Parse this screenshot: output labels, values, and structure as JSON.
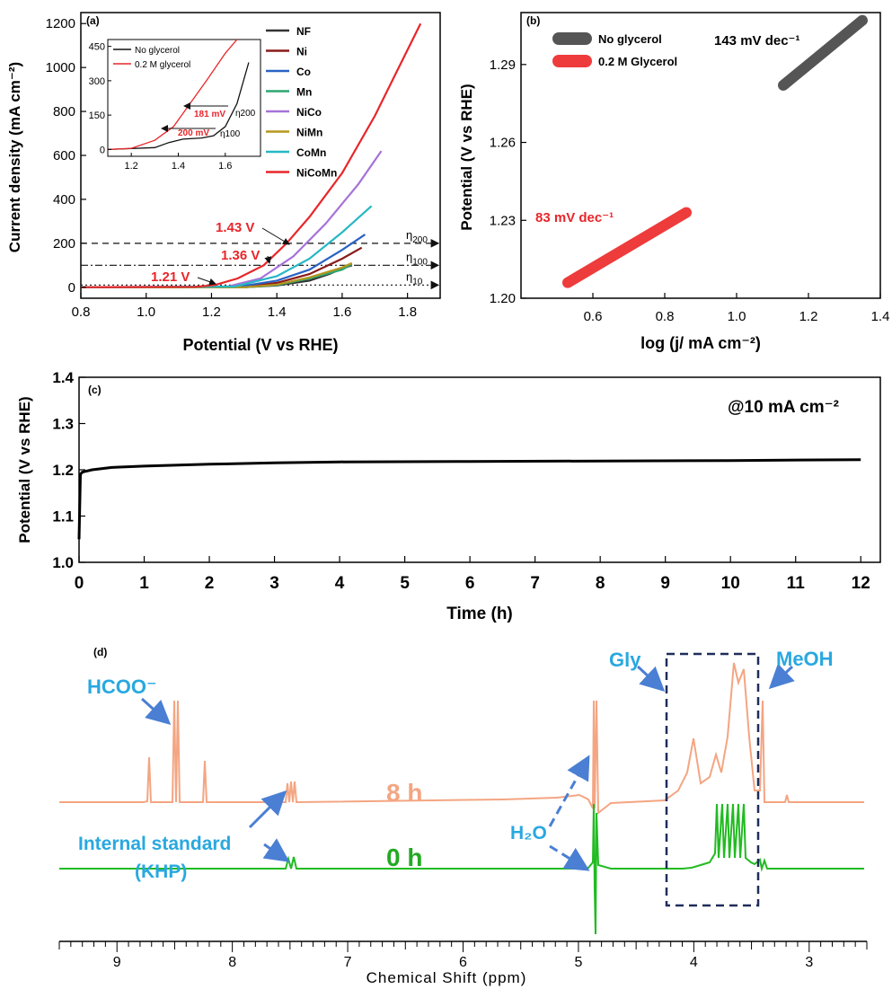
{
  "chart_data": [
    {
      "panel": "(a)",
      "type": "line",
      "xlabel": "Potential (V vs RHE)",
      "ylabel": "Current density (mA cm⁻²)",
      "xlim": [
        0.8,
        1.9
      ],
      "ylim": [
        -50,
        1250
      ],
      "xticks": [
        0.8,
        1.0,
        1.2,
        1.4,
        1.6,
        1.8
      ],
      "yticks": [
        0,
        200,
        400,
        600,
        800,
        1000,
        1200
      ],
      "grid": false,
      "legend_position": "top-right",
      "series": [
        {
          "name": "NF",
          "color": "#333333",
          "x": [
            0.8,
            1.3,
            1.4,
            1.5,
            1.56,
            1.6,
            1.63
          ],
          "y": [
            0,
            0,
            8,
            30,
            60,
            85,
            100
          ]
        },
        {
          "name": "Ni",
          "color": "#8b1a1a",
          "x": [
            0.8,
            1.3,
            1.4,
            1.5,
            1.6,
            1.66
          ],
          "y": [
            0,
            2,
            20,
            60,
            130,
            180
          ]
        },
        {
          "name": "Co",
          "color": "#2a62c4",
          "x": [
            0.8,
            1.28,
            1.4,
            1.5,
            1.6,
            1.67
          ],
          "y": [
            0,
            2,
            30,
            80,
            170,
            240
          ]
        },
        {
          "name": "Mn",
          "color": "#2ea672",
          "x": [
            0.8,
            1.3,
            1.4,
            1.5,
            1.6,
            1.63
          ],
          "y": [
            0,
            0,
            10,
            40,
            80,
            105
          ]
        },
        {
          "name": "NiCo",
          "color": "#a672d8",
          "x": [
            0.8,
            1.25,
            1.35,
            1.45,
            1.55,
            1.65,
            1.72
          ],
          "y": [
            0,
            3,
            40,
            140,
            290,
            470,
            620
          ]
        },
        {
          "name": "NiMn",
          "color": "#b5961e",
          "x": [
            0.8,
            1.3,
            1.4,
            1.5,
            1.6,
            1.63
          ],
          "y": [
            0,
            0,
            12,
            45,
            90,
            110
          ]
        },
        {
          "name": "CoMn",
          "color": "#26b8c4",
          "x": [
            0.8,
            1.27,
            1.4,
            1.5,
            1.6,
            1.69
          ],
          "y": [
            0,
            3,
            50,
            130,
            250,
            370
          ]
        },
        {
          "name": "NiCoMn",
          "color": "#e8262a",
          "x": [
            0.8,
            1.15,
            1.21,
            1.28,
            1.36,
            1.43,
            1.5,
            1.6,
            1.7,
            1.76,
            1.84
          ],
          "y": [
            0,
            2,
            10,
            40,
            100,
            200,
            320,
            520,
            780,
            960,
            1200
          ]
        }
      ],
      "reference_lines": [
        {
          "label": "η200",
          "y": 200,
          "style": "dashed"
        },
        {
          "label": "η100",
          "y": 100,
          "style": "dash-dot"
        },
        {
          "label": "η10",
          "y": 10,
          "style": "dotted"
        }
      ],
      "annotations": [
        {
          "text": "1.43 V",
          "x": 1.43,
          "y": 200,
          "color": "#e8262a"
        },
        {
          "text": "1.36 V",
          "x": 1.36,
          "y": 100,
          "color": "#e8262a"
        },
        {
          "text": "1.21 V",
          "x": 1.21,
          "y": 10,
          "color": "#e8262a"
        }
      ],
      "inset": {
        "xlim": [
          1.1,
          1.75
        ],
        "ylim": [
          -30,
          480
        ],
        "xticks": [
          1.2,
          1.4,
          1.6
        ],
        "yticks": [
          0,
          150,
          300,
          450
        ],
        "series": [
          {
            "name": "No glycerol",
            "color": "#111111",
            "x": [
              1.1,
              1.3,
              1.36,
              1.42,
              1.5,
              1.55,
              1.6,
              1.65,
              1.7
            ],
            "y": [
              0,
              8,
              30,
              45,
              50,
              60,
              100,
              200,
              380
            ]
          },
          {
            "name": "0.2 M glycerol",
            "color": "#e8262a",
            "x": [
              1.1,
              1.2,
              1.3,
              1.38,
              1.45,
              1.52,
              1.6,
              1.65
            ],
            "y": [
              0,
              5,
              40,
              100,
              200,
              300,
              420,
              480
            ]
          }
        ],
        "annotations": [
          {
            "text": "181 mV",
            "color": "#e8262a"
          },
          {
            "text": "200 mV",
            "color": "#e8262a"
          },
          {
            "text": "η200"
          },
          {
            "text": "η100"
          }
        ]
      }
    },
    {
      "panel": "(b)",
      "type": "scatter",
      "xlabel": "log (j/ mA cm⁻²)",
      "ylabel": "Potential (V vs RHE)",
      "xlim": [
        0.4,
        1.4
      ],
      "ylim": [
        1.2,
        1.31
      ],
      "xticks": [
        0.6,
        0.8,
        1.0,
        1.2,
        1.4
      ],
      "yticks": [
        1.2,
        1.23,
        1.26,
        1.29
      ],
      "legend_position": "top-left",
      "series": [
        {
          "name": "No glycerol",
          "color": "#555555",
          "x": [
            1.13,
            1.35
          ],
          "y": [
            1.282,
            1.307
          ],
          "slope_label": "143 mV dec⁻¹"
        },
        {
          "name": "0.2 M Glycerol",
          "color": "#ee3b3b",
          "x": [
            0.53,
            0.86
          ],
          "y": [
            1.206,
            1.233
          ],
          "slope_label": "83 mV dec⁻¹"
        }
      ]
    },
    {
      "panel": "(c)",
      "type": "line",
      "xlabel": "Time (h)",
      "ylabel": "Potential (V vs RHE)",
      "xlim": [
        0,
        12.3
      ],
      "ylim": [
        1.0,
        1.4
      ],
      "xticks": [
        0,
        1,
        2,
        3,
        4,
        5,
        6,
        7,
        8,
        9,
        10,
        11,
        12
      ],
      "yticks": [
        1.0,
        1.1,
        1.2,
        1.3,
        1.4
      ],
      "annotation": "@10 mA cm⁻²",
      "series": [
        {
          "name": "",
          "color": "#000000",
          "x": [
            0,
            0.02,
            0.05,
            0.2,
            0.5,
            1,
            2,
            3,
            4,
            6,
            8,
            10,
            12
          ],
          "y": [
            1.05,
            1.19,
            1.195,
            1.2,
            1.205,
            1.208,
            1.212,
            1.215,
            1.217,
            1.218,
            1.219,
            1.22,
            1.222
          ]
        }
      ]
    },
    {
      "panel": "(d)",
      "type": "line",
      "xlabel": "Chemical Shift (ppm)",
      "xlim": [
        9.5,
        2.5
      ],
      "xticks": [
        9,
        8,
        7,
        6,
        5,
        4,
        3
      ],
      "series": [
        {
          "name": "8 h",
          "color": "#f4a582",
          "label": "8 h"
        },
        {
          "name": "0 h",
          "color": "#22bb22",
          "label": "0 h"
        }
      ],
      "labels": [
        {
          "text": "HCOO⁻",
          "color": "#29a8e0"
        },
        {
          "text": "Internal standard",
          "color": "#29a8e0"
        },
        {
          "text": "(KHP)",
          "color": "#29a8e0"
        },
        {
          "text": "H₂O",
          "color": "#29a8e0"
        },
        {
          "text": "Gly",
          "color": "#29a8e0"
        },
        {
          "text": "MeOH",
          "color": "#29a8e0"
        }
      ]
    }
  ]
}
